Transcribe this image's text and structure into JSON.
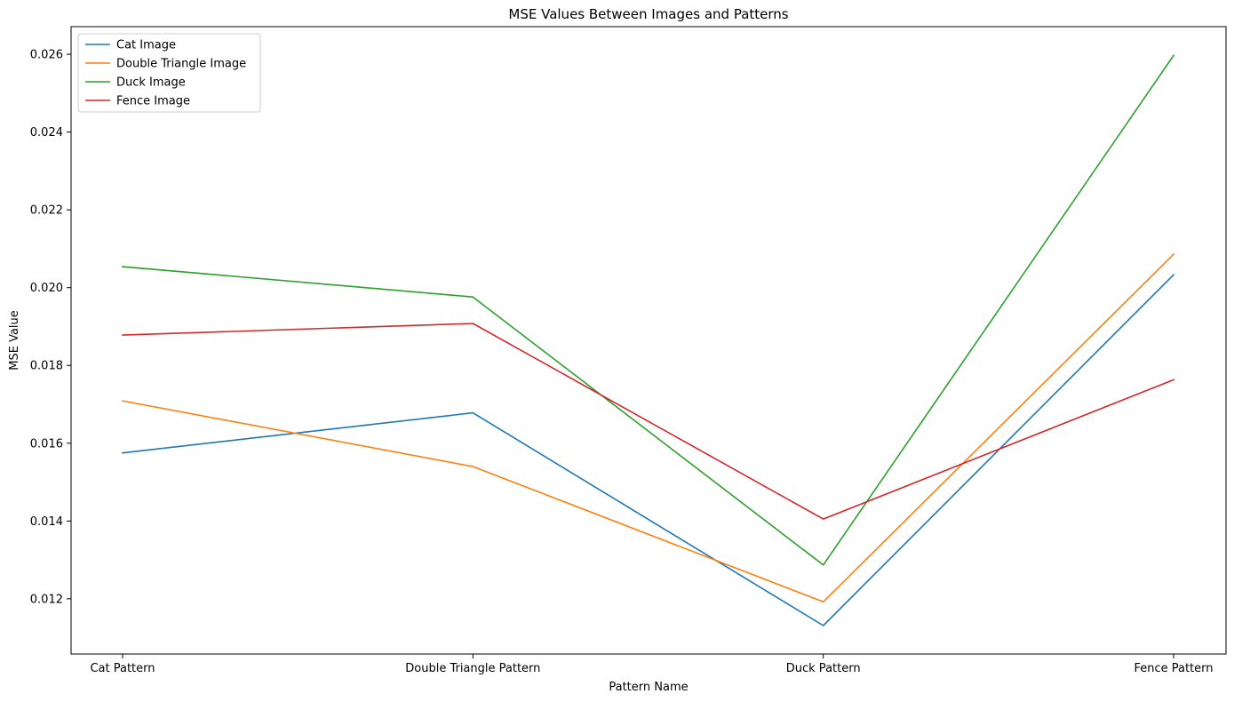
{
  "chart_data": {
    "type": "line",
    "title": "MSE Values Between Images and Patterns",
    "xlabel": "Pattern Name",
    "ylabel": "MSE Value",
    "categories": [
      "Cat Pattern",
      "Double Triangle Pattern",
      "Duck Pattern",
      "Fence Pattern"
    ],
    "ylim": [
      0.01058,
      0.02671
    ],
    "yticks": [
      "0.012",
      "0.014",
      "0.016",
      "0.018",
      "0.020",
      "0.022",
      "0.024",
      "0.026"
    ],
    "grid": false,
    "legend_position": "top-left",
    "series": [
      {
        "name": "Cat Image",
        "color": "#1f77b4",
        "values": [
          0.01575,
          0.01678,
          0.01131,
          0.02033
        ]
      },
      {
        "name": "Double Triangle Image",
        "color": "#ff7f0e",
        "values": [
          0.01709,
          0.0154,
          0.01192,
          0.02086
        ]
      },
      {
        "name": "Duck Image",
        "color": "#2ca02c",
        "values": [
          0.02054,
          0.01976,
          0.01287,
          0.02597
        ]
      },
      {
        "name": "Fence Image",
        "color": "#d62728",
        "values": [
          0.01878,
          0.01908,
          0.01405,
          0.01763
        ]
      }
    ]
  }
}
